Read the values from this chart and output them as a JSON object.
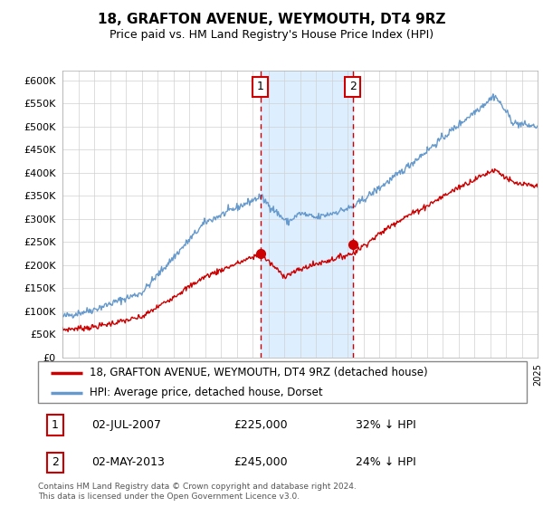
{
  "title": "18, GRAFTON AVENUE, WEYMOUTH, DT4 9RZ",
  "subtitle": "Price paid vs. HM Land Registry's House Price Index (HPI)",
  "ylim": [
    0,
    620000
  ],
  "yticks": [
    0,
    50000,
    100000,
    150000,
    200000,
    250000,
    300000,
    350000,
    400000,
    450000,
    500000,
    550000,
    600000
  ],
  "legend_line1": "18, GRAFTON AVENUE, WEYMOUTH, DT4 9RZ (detached house)",
  "legend_line2": "HPI: Average price, detached house, Dorset",
  "annotation1_date": "02-JUL-2007",
  "annotation1_price": "£225,000",
  "annotation1_hpi": "32% ↓ HPI",
  "annotation2_date": "02-MAY-2013",
  "annotation2_price": "£245,000",
  "annotation2_hpi": "24% ↓ HPI",
  "footer": "Contains HM Land Registry data © Crown copyright and database right 2024.\nThis data is licensed under the Open Government Licence v3.0.",
  "hpi_color": "#6699cc",
  "price_color": "#cc0000",
  "shade_color": "#ddeeff",
  "vline1_x": 2007.5,
  "vline2_x": 2013.33,
  "marker1_x": 2007.5,
  "marker1_y": 225000,
  "marker2_x": 2013.33,
  "marker2_y": 245000,
  "xmin": 1995,
  "xmax": 2025
}
